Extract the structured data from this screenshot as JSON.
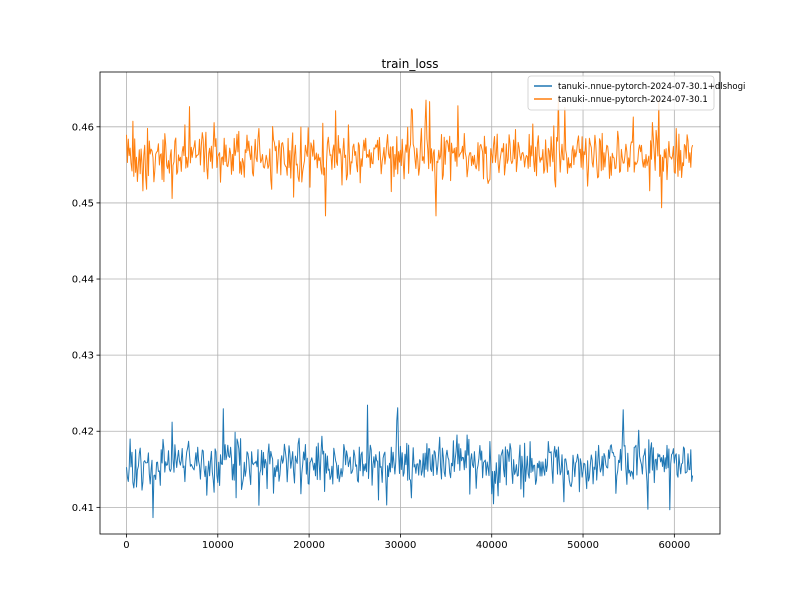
{
  "chart_data": {
    "type": "line",
    "title": "train_loss",
    "xlabel": "",
    "ylabel": "",
    "xlim": [
      -2900,
      65000
    ],
    "ylim": [
      0.4065,
      0.4672
    ],
    "x_ticks": [
      0,
      10000,
      20000,
      30000,
      40000,
      50000,
      60000
    ],
    "x_tick_labels": [
      "0",
      "10000",
      "20000",
      "30000",
      "40000",
      "50000",
      "60000"
    ],
    "y_ticks": [
      0.41,
      0.42,
      0.43,
      0.44,
      0.45,
      0.46
    ],
    "y_tick_labels": [
      "0.41",
      "0.42",
      "0.43",
      "0.44",
      "0.45",
      "0.46"
    ],
    "grid": true,
    "legend_position": "top-right",
    "x_range": [
      0,
      62000
    ],
    "sample_step": 100,
    "series": [
      {
        "name": "tanuki-.nnue-pytorch-2024-07-30.1+dlshogi",
        "color": "#1f77b4",
        "mean": 0.4158,
        "amplitude": 0.0024,
        "min": 0.4065,
        "max": 0.4245,
        "seed": 17
      },
      {
        "name": "tanuki-.nnue-pytorch-2024-07-30.1",
        "color": "#ff7f0e",
        "mean": 0.4562,
        "amplitude": 0.0025,
        "min": 0.4483,
        "max": 0.4657,
        "seed": 91
      }
    ]
  }
}
